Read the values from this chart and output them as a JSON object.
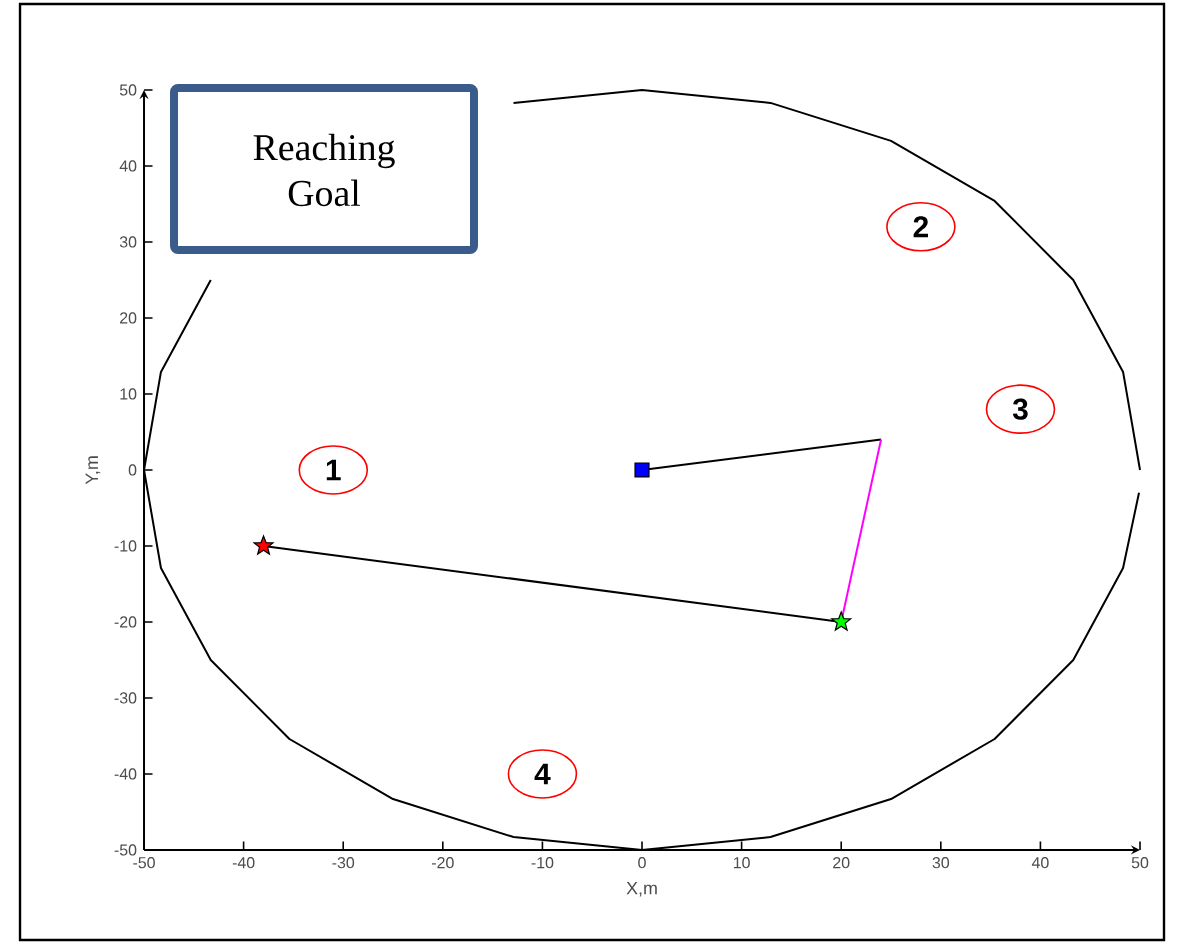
{
  "chart_data": {
    "type": "line",
    "xlabel": "X,m",
    "ylabel": "Y,m",
    "xlim": [
      -50,
      50
    ],
    "ylim": [
      -50,
      50
    ],
    "xticks": [
      -50,
      -40,
      -30,
      -20,
      -10,
      0,
      10,
      20,
      30,
      40,
      50
    ],
    "yticks": [
      -50,
      -40,
      -30,
      -20,
      -10,
      0,
      10,
      20,
      30,
      40,
      50
    ],
    "series": [
      {
        "type": "line",
        "color": "#000000",
        "x": [
          50,
          48.3,
          43.3,
          35.4,
          25,
          12.9,
          0,
          -12.9,
          -25,
          -35.4,
          -43.3,
          -48.3,
          -50,
          -48.3,
          -43.3,
          -35.4,
          -25,
          -12.9,
          0,
          12.9,
          25,
          35.4,
          43.3,
          48.3,
          49.9
        ],
        "values": [
          0,
          12.9,
          25,
          35.4,
          43.3,
          48.3,
          50,
          48.3,
          null,
          null,
          25,
          12.9,
          0,
          -12.9,
          -25,
          -35.4,
          -43.3,
          -48.3,
          -50,
          -48.3,
          -43.3,
          -35.4,
          -25,
          -12.9,
          -3
        ]
      },
      {
        "type": "line",
        "color": "#000000",
        "x": [
          0,
          24
        ],
        "values": [
          0,
          4
        ]
      },
      {
        "type": "line",
        "color": "#ff00ff",
        "x": [
          24,
          20
        ],
        "values": [
          4,
          -20
        ]
      },
      {
        "type": "line",
        "color": "#000000",
        "x": [
          -38,
          20
        ],
        "values": [
          -10,
          -20
        ]
      },
      {
        "type": "scatter",
        "marker": "square",
        "color": "#0000ff",
        "x": [
          0
        ],
        "values": [
          0
        ]
      },
      {
        "type": "scatter",
        "marker": "star",
        "color": "#ff0000",
        "x": [
          -38
        ],
        "values": [
          -10
        ]
      },
      {
        "type": "scatter",
        "marker": "star",
        "color": "#00ff00",
        "x": [
          20
        ],
        "values": [
          -20
        ]
      }
    ],
    "annotations": [
      {
        "text": "1",
        "x": -31,
        "y": 0
      },
      {
        "text": "2",
        "x": 28,
        "y": 32
      },
      {
        "text": "3",
        "x": 38,
        "y": 8
      },
      {
        "text": "4",
        "x": -10,
        "y": -40
      },
      "Reaching Goal"
    ]
  }
}
